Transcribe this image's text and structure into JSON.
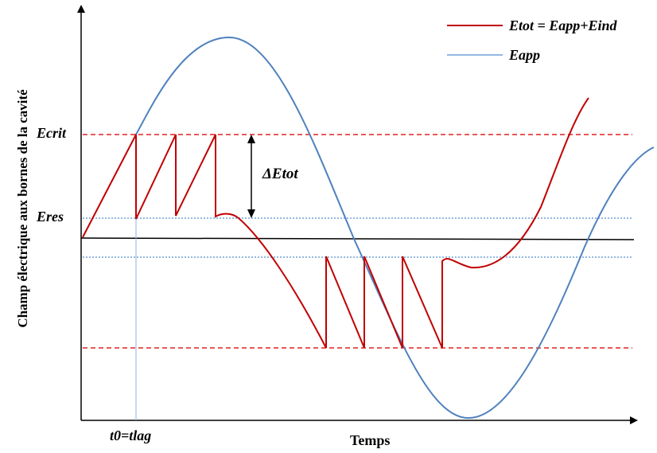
{
  "diagram": {
    "y_axis_label": "Champ électrique aux bornes de la cavité",
    "x_axis_label": "Temps",
    "level_labels": {
      "ecrit": "Ecrit",
      "eres": "Eres"
    },
    "time_marker_label": "t0=tlag",
    "delta_label": "ΔEtot",
    "legend": [
      {
        "label": "Etot = Eapp+Eind",
        "color": "#c00000"
      },
      {
        "label": "Eapp",
        "color": "#4a7ebb"
      }
    ],
    "colors": {
      "etot": "#c00000",
      "eapp": "#4f81bd",
      "threshold_dashed": "#e02020",
      "reset_dotted": "#6fa0d8",
      "axes": "#000000"
    }
  }
}
